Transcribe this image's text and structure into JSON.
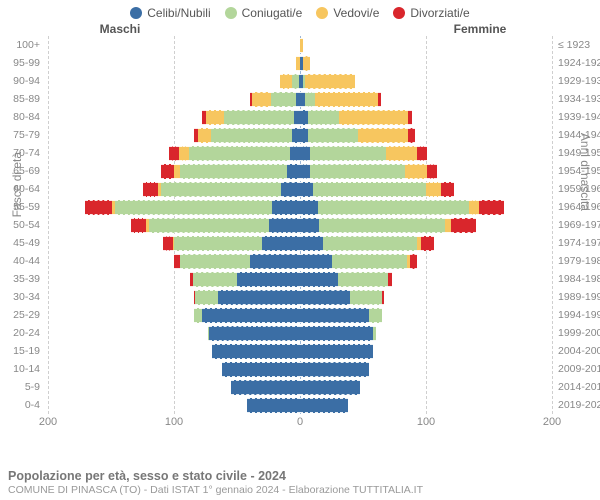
{
  "legend": {
    "items": [
      {
        "key": "celibi",
        "label": "Celibi/Nubili",
        "color": "#3b6ea5"
      },
      {
        "key": "coniugati",
        "label": "Coniugati/e",
        "color": "#b3d69b"
      },
      {
        "key": "vedovi",
        "label": "Vedovi/e",
        "color": "#f7c65f"
      },
      {
        "key": "divorziati",
        "label": "Divorziati/e",
        "color": "#d9262c"
      }
    ]
  },
  "headers": {
    "left": "Maschi",
    "right": "Femmine"
  },
  "axis": {
    "left_label": "Fasce di età",
    "right_label": "Anni di nascita",
    "xmax": 200,
    "ticks_left": [
      200,
      100,
      0
    ],
    "ticks_right": [
      0,
      100,
      200
    ]
  },
  "colors": {
    "celibi": "#3b6ea5",
    "coniugati": "#b3d69b",
    "vedovi": "#f7c65f",
    "divorziati": "#d9262c",
    "grid": "#cfcfcf",
    "center": "#9ab6d6",
    "bg": "#ffffff"
  },
  "rows": [
    {
      "age": "100+",
      "year": "≤ 1923",
      "m": {
        "c": 0,
        "k": 0,
        "v": 0,
        "d": 0
      },
      "f": {
        "c": 0,
        "k": 0,
        "v": 2,
        "d": 0
      }
    },
    {
      "age": "95-99",
      "year": "1924-1928",
      "m": {
        "c": 0,
        "k": 0,
        "v": 3,
        "d": 0
      },
      "f": {
        "c": 2,
        "k": 0,
        "v": 6,
        "d": 0
      }
    },
    {
      "age": "90-94",
      "year": "1929-1933",
      "m": {
        "c": 1,
        "k": 5,
        "v": 10,
        "d": 0
      },
      "f": {
        "c": 2,
        "k": 2,
        "v": 40,
        "d": 0
      }
    },
    {
      "age": "85-89",
      "year": "1934-1938",
      "m": {
        "c": 3,
        "k": 20,
        "v": 15,
        "d": 2
      },
      "f": {
        "c": 4,
        "k": 8,
        "v": 50,
        "d": 2
      }
    },
    {
      "age": "80-84",
      "year": "1939-1943",
      "m": {
        "c": 5,
        "k": 55,
        "v": 15,
        "d": 3
      },
      "f": {
        "c": 6,
        "k": 25,
        "v": 55,
        "d": 3
      }
    },
    {
      "age": "75-79",
      "year": "1944-1948",
      "m": {
        "c": 6,
        "k": 65,
        "v": 10,
        "d": 3
      },
      "f": {
        "c": 6,
        "k": 40,
        "v": 40,
        "d": 5
      }
    },
    {
      "age": "70-74",
      "year": "1949-1953",
      "m": {
        "c": 8,
        "k": 80,
        "v": 8,
        "d": 8
      },
      "f": {
        "c": 8,
        "k": 60,
        "v": 25,
        "d": 8
      }
    },
    {
      "age": "65-69",
      "year": "1954-1958",
      "m": {
        "c": 10,
        "k": 85,
        "v": 5,
        "d": 10
      },
      "f": {
        "c": 8,
        "k": 75,
        "v": 18,
        "d": 8
      }
    },
    {
      "age": "60-64",
      "year": "1959-1963",
      "m": {
        "c": 15,
        "k": 95,
        "v": 3,
        "d": 12
      },
      "f": {
        "c": 10,
        "k": 90,
        "v": 12,
        "d": 10
      }
    },
    {
      "age": "55-59",
      "year": "1964-1968",
      "m": {
        "c": 22,
        "k": 125,
        "v": 2,
        "d": 22
      },
      "f": {
        "c": 14,
        "k": 120,
        "v": 8,
        "d": 20
      }
    },
    {
      "age": "50-54",
      "year": "1969-1973",
      "m": {
        "c": 25,
        "k": 95,
        "v": 2,
        "d": 12
      },
      "f": {
        "c": 15,
        "k": 100,
        "v": 5,
        "d": 20
      }
    },
    {
      "age": "45-49",
      "year": "1974-1978",
      "m": {
        "c": 30,
        "k": 70,
        "v": 1,
        "d": 8
      },
      "f": {
        "c": 18,
        "k": 75,
        "v": 3,
        "d": 10
      }
    },
    {
      "age": "40-44",
      "year": "1979-1983",
      "m": {
        "c": 40,
        "k": 55,
        "v": 0,
        "d": 5
      },
      "f": {
        "c": 25,
        "k": 60,
        "v": 2,
        "d": 6
      }
    },
    {
      "age": "35-39",
      "year": "1984-1988",
      "m": {
        "c": 50,
        "k": 35,
        "v": 0,
        "d": 2
      },
      "f": {
        "c": 30,
        "k": 40,
        "v": 0,
        "d": 3
      }
    },
    {
      "age": "30-34",
      "year": "1989-1993",
      "m": {
        "c": 65,
        "k": 18,
        "v": 0,
        "d": 1
      },
      "f": {
        "c": 40,
        "k": 25,
        "v": 0,
        "d": 2
      }
    },
    {
      "age": "25-29",
      "year": "1994-1998",
      "m": {
        "c": 78,
        "k": 6,
        "v": 0,
        "d": 0
      },
      "f": {
        "c": 55,
        "k": 10,
        "v": 0,
        "d": 0
      }
    },
    {
      "age": "20-24",
      "year": "1999-2003",
      "m": {
        "c": 72,
        "k": 1,
        "v": 0,
        "d": 0
      },
      "f": {
        "c": 58,
        "k": 2,
        "v": 0,
        "d": 0
      }
    },
    {
      "age": "15-19",
      "year": "2004-2008",
      "m": {
        "c": 70,
        "k": 0,
        "v": 0,
        "d": 0
      },
      "f": {
        "c": 58,
        "k": 0,
        "v": 0,
        "d": 0
      }
    },
    {
      "age": "10-14",
      "year": "2009-2013",
      "m": {
        "c": 62,
        "k": 0,
        "v": 0,
        "d": 0
      },
      "f": {
        "c": 55,
        "k": 0,
        "v": 0,
        "d": 0
      }
    },
    {
      "age": "5-9",
      "year": "2014-2018",
      "m": {
        "c": 55,
        "k": 0,
        "v": 0,
        "d": 0
      },
      "f": {
        "c": 48,
        "k": 0,
        "v": 0,
        "d": 0
      }
    },
    {
      "age": "0-4",
      "year": "2019-2023",
      "m": {
        "c": 42,
        "k": 0,
        "v": 0,
        "d": 0
      },
      "f": {
        "c": 38,
        "k": 0,
        "v": 0,
        "d": 0
      }
    }
  ],
  "footer": {
    "title": "Popolazione per età, sesso e stato civile - 2024",
    "subtitle": "COMUNE DI PINASCA (TO) - Dati ISTAT 1° gennaio 2024 - Elaborazione TUTTITALIA.IT"
  }
}
